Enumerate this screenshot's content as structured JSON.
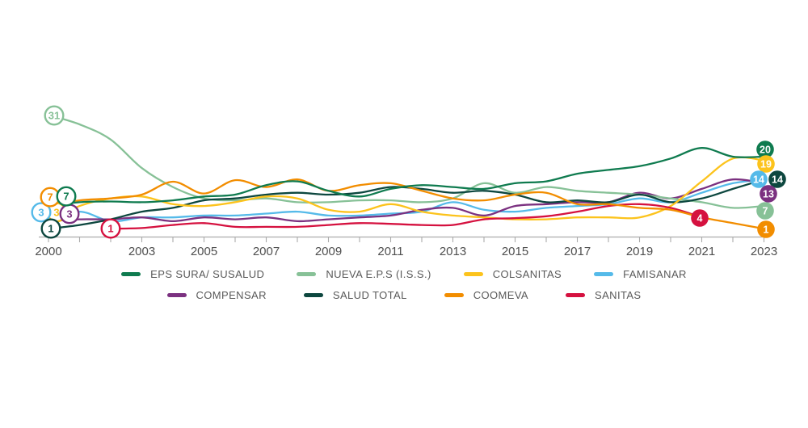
{
  "page": {
    "background": "#ffffff"
  },
  "axis": {
    "line_color": "#ababab",
    "label_color": "#4f4f4f",
    "labeled_years": [
      2000,
      2003,
      2005,
      2007,
      2009,
      2011,
      2013,
      2015,
      2017,
      2019,
      2021,
      2023
    ]
  },
  "chart_data": {
    "type": "line",
    "title": "",
    "xlabel": "",
    "ylabel": "",
    "x_range": [
      2000,
      2023
    ],
    "grid": false,
    "legend_position": "bottom",
    "series": [
      {
        "id": "eps_sura",
        "name": "EPS SURA/ SUSALUD",
        "color": "#0f7b4f",
        "year_start": 2000,
        "year_end": 2023,
        "values": [
          7,
          8,
          8.2,
          8,
          8.5,
          9.5,
          10,
          12.5,
          13.5,
          11,
          9.5,
          11.5,
          12.5,
          12,
          11.5,
          13,
          13.5,
          15.5,
          16.5,
          17.5,
          19.5,
          22.3,
          20,
          20
        ],
        "badge_start": {
          "year": 2000,
          "value": 7
        },
        "badge_end": {
          "year": 2023,
          "value": 20
        }
      },
      {
        "id": "nueva_eps",
        "name": "NUEVA E.P.S (I.S.S.)",
        "color": "#87c197",
        "year_start": 2000,
        "year_end": 2023,
        "values": [
          31,
          28.5,
          24.5,
          17,
          12,
          9,
          8.5,
          9,
          8,
          8,
          8.5,
          8.5,
          8,
          9,
          13,
          10.5,
          12,
          11,
          10.5,
          10,
          9,
          8,
          6.5,
          7
        ],
        "badge_start": {
          "year": 2000,
          "value": 31
        },
        "badge_end": {
          "year": 2023,
          "value": 7
        }
      },
      {
        "id": "colsanitas",
        "name": "COLSANITAS",
        "color": "#fcc31c",
        "year_start": 2000,
        "year_end": 2023,
        "values": [
          3,
          7,
          9,
          9.5,
          7.5,
          7,
          8,
          9.5,
          9,
          6,
          5.5,
          7.5,
          5.5,
          4.5,
          4,
          3.5,
          3.5,
          4,
          4,
          4,
          7,
          13.5,
          19.5,
          19
        ],
        "badge_start": {
          "year": 2000,
          "value": 3
        },
        "badge_end": {
          "year": 2023,
          "value": 19
        }
      },
      {
        "id": "famisanar",
        "name": "FAMISANAR",
        "color": "#55bae9",
        "year_start": 2000,
        "year_end": 2023,
        "values": [
          3,
          5.5,
          3,
          4,
          4,
          4.5,
          4.5,
          5,
          5.5,
          4.5,
          4.5,
          5,
          5.5,
          8,
          6,
          5.5,
          6.5,
          7,
          7.5,
          9,
          8,
          10.5,
          13,
          14
        ],
        "badge_start": {
          "year": 2000,
          "value": 3
        },
        "badge_end": {
          "year": 2023,
          "value": 14
        }
      },
      {
        "id": "compensar",
        "name": "COMPENSAR",
        "color": "#7b3180",
        "year_start": 2000,
        "year_end": 2023,
        "values": [
          3,
          3.5,
          3.5,
          4,
          3,
          4,
          3.5,
          4,
          3,
          3.5,
          4,
          4.5,
          6,
          6.5,
          4.5,
          7,
          7.5,
          8,
          8,
          10.5,
          9,
          11.5,
          14,
          13
        ],
        "badge_start": {
          "year": 2000,
          "value": 3
        },
        "badge_end": {
          "year": 2023,
          "value": 13
        }
      },
      {
        "id": "salud_total",
        "name": "SALUD TOTAL",
        "color": "#0d473f",
        "year_start": 2000,
        "year_end": 2023,
        "values": [
          1,
          2,
          3.5,
          5.5,
          6.5,
          8.5,
          9,
          10,
          10.5,
          10,
          10.5,
          12,
          11.5,
          10.5,
          11,
          10,
          8,
          8.5,
          8,
          10,
          8,
          9,
          11.5,
          14
        ],
        "badge_start": {
          "year": 2000,
          "value": 1
        },
        "badge_end": {
          "year": 2023,
          "value": 14
        }
      },
      {
        "id": "coomeva",
        "name": "COOMEVA",
        "color": "#f28d00",
        "year_start": 2000,
        "year_end": 2023,
        "values": [
          7,
          8.5,
          9,
          10,
          13.4,
          10.3,
          13.8,
          12,
          14,
          11,
          12.5,
          13,
          11,
          9,
          8.5,
          10,
          10.5,
          7.5,
          7.5,
          6.5,
          6,
          4,
          2.5,
          1
        ],
        "badge_start": {
          "year": 2000,
          "value": 7
        },
        "badge_end": {
          "year": 2023,
          "value": 1
        }
      },
      {
        "id": "sanitas",
        "name": "SANITAS",
        "color": "#d5113f",
        "year_start": 2002,
        "year_end": 2021,
        "values": [
          1,
          1.2,
          2,
          2.5,
          1.5,
          1.5,
          1.5,
          2,
          2.5,
          2.3,
          2,
          2,
          3.5,
          3.8,
          4.3,
          5.5,
          7,
          7.5,
          6.5,
          4
        ],
        "badge_start": {
          "year": 2002,
          "value": 1
        },
        "badge_end": {
          "year": 2021,
          "value": 4
        }
      }
    ]
  },
  "legend": {
    "rows": [
      [
        "eps_sura",
        "nueva_eps",
        "colsanitas",
        "famisanar"
      ],
      [
        "compensar",
        "salud_total",
        "coomeva",
        "sanitas"
      ]
    ]
  }
}
